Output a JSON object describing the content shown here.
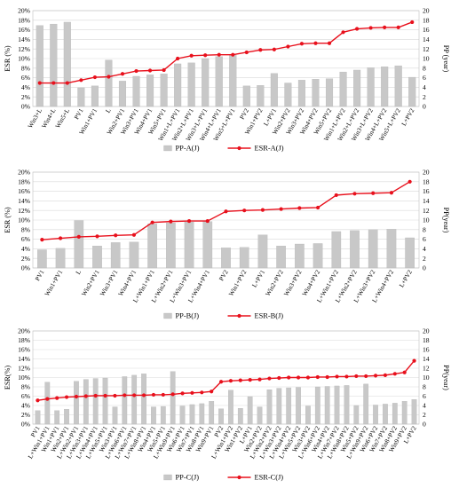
{
  "chart_data": [
    {
      "type": "bar+line",
      "ylabel_left": "ESR (%)",
      "ylabel_right": "PP (year)",
      "ylim_left": [
        0,
        20
      ],
      "ylim_right": [
        0,
        20
      ],
      "yticks_left": [
        "0%",
        "2%",
        "4%",
        "6%",
        "8%",
        "10%",
        "12%",
        "14%",
        "16%",
        "18%",
        "20%"
      ],
      "yticks_right": [
        "0",
        "2",
        "4",
        "6",
        "8",
        "10",
        "12",
        "14",
        "16",
        "18",
        "20"
      ],
      "grid": true,
      "legend_position": "bottom",
      "categories": [
        "Win3+L",
        "Win4+L",
        "Win5+L",
        "PV1",
        "Win1+PV1",
        "L",
        "Win2+PV1",
        "Win3+PV1",
        "Win4+PV1",
        "Win5+PV1",
        "Win1+L+PV1",
        "Win2+L+PV1",
        "Win3+L+PV1",
        "Win4+L+PV1",
        "Win5+L+PV1",
        "PV2",
        "Win1+PV2",
        "L+PV1",
        "Win2+PV2",
        "Win3+PV2",
        "Win4+PV2",
        "Win5+PV2",
        "Win1+L+PV2",
        "Win2+L+PV2",
        "Win3+L+PV2",
        "Win4+L+PV2",
        "Win5+L+PV2",
        "L+PV2"
      ],
      "series": [
        {
          "name": "PP-A(J)",
          "kind": "bar",
          "axis": "right",
          "color": "#c8c8c8",
          "values": [
            16.9,
            17.2,
            17.6,
            3.9,
            4.3,
            9.7,
            5.3,
            6.3,
            6.6,
            6.8,
            8.9,
            9.1,
            10.0,
            10.4,
            10.7,
            4.3,
            4.4,
            6.9,
            4.9,
            5.5,
            5.7,
            5.8,
            7.2,
            7.6,
            8.1,
            8.3,
            8.5,
            6.1
          ]
        },
        {
          "name": "ESR-A(J)",
          "kind": "line",
          "axis": "left",
          "color": "#e8101c",
          "values": [
            4.9,
            4.9,
            4.9,
            5.5,
            6.1,
            6.2,
            6.8,
            7.4,
            7.5,
            7.6,
            10.0,
            10.6,
            10.7,
            10.8,
            10.8,
            11.3,
            11.8,
            11.9,
            12.5,
            13.1,
            13.2,
            13.2,
            15.5,
            16.2,
            16.4,
            16.5,
            16.5,
            17.6
          ]
        }
      ]
    },
    {
      "type": "bar+line",
      "ylabel_left": "ESR (%)",
      "ylabel_right": "PP(year)",
      "ylim_left": [
        0,
        20
      ],
      "ylim_right": [
        0,
        20
      ],
      "yticks_left": [
        "0%",
        "2%",
        "4%",
        "6%",
        "8%",
        "10%",
        "12%",
        "14%",
        "16%",
        "18%",
        "20%"
      ],
      "yticks_right": [
        "0",
        "2",
        "4",
        "6",
        "8",
        "10",
        "12",
        "14",
        "16",
        "18",
        "20"
      ],
      "grid": true,
      "legend_position": "bottom",
      "categories": [
        "PV1",
        "Win1+PV1",
        "L",
        "Win2+PV1",
        "Win3+PV1",
        "Win4+PV1",
        "L+Win1+PV1",
        "L+Win2+PV1",
        "L+Win3+PV1",
        "L+Win4+PV1",
        "PV2",
        "Win1+PV2",
        "L+PV1",
        "Win2+PV2",
        "Win3+PV2",
        "Win4+PV2",
        "L+Win1+PV2",
        "L+Win2+PV2",
        "L+Win3+PV2",
        "L+Win4+PV2",
        "L+PV2"
      ],
      "series": [
        {
          "name": "PP-B(J)",
          "kind": "bar",
          "axis": "right",
          "color": "#c8c8c8",
          "values": [
            3.8,
            4.1,
            9.9,
            4.6,
            5.3,
            5.4,
            9.2,
            9.4,
            9.6,
            9.7,
            4.2,
            4.3,
            6.9,
            4.6,
            5.0,
            5.1,
            7.6,
            7.8,
            8.0,
            8.1,
            6.3
          ]
        },
        {
          "name": "ESR-B(J)",
          "kind": "line",
          "axis": "left",
          "color": "#e8101c",
          "values": [
            5.9,
            6.2,
            6.5,
            6.6,
            6.8,
            6.9,
            9.5,
            9.7,
            9.8,
            9.8,
            11.8,
            12.0,
            12.1,
            12.3,
            12.5,
            12.6,
            15.2,
            15.5,
            15.6,
            15.7,
            18.0
          ]
        }
      ]
    },
    {
      "type": "bar+line",
      "ylabel_left": "ESR(%)",
      "ylabel_right": "PP(year)",
      "ylim_left": [
        0,
        20
      ],
      "ylim_right": [
        0,
        20
      ],
      "yticks_left": [
        "0%",
        "2%",
        "4%",
        "6%",
        "8%",
        "10%",
        "12%",
        "14%",
        "16%",
        "18%",
        "20%"
      ],
      "yticks_right": [
        "0",
        "2",
        "4",
        "6",
        "8",
        "10",
        "12",
        "14",
        "16",
        "18",
        "20"
      ],
      "grid": true,
      "legend_position": "bottom",
      "categories": [
        "PV1",
        "L+Win1+PV1",
        "Win1+PV1",
        "Win2+PV1",
        "L+Win2+PV1",
        "L+Win3+PV1",
        "L+Win4+PV1",
        "L+Win5+PV1",
        "Win3+PV1",
        "L+Win6+PV1",
        "L+Win7+PV1",
        "L+Win8+PV1",
        "Win4+PV1",
        "Win5+PV1",
        "L+Win9+PV1",
        "Win6+PV1",
        "Win7+PV1",
        "Win8+PV1",
        "Win9+PV1",
        "PV2",
        "L+Win1+PV2",
        "Win1+PV2",
        "L+PV1",
        "Win2+PV2",
        "L+Win2+PV2",
        "L+Win3+PV2",
        "L+Win4+PV2",
        "L+Win5+PV2",
        "Win3+PV2",
        "L+Win6+PV2",
        "Win4+PV2",
        "L+Win7+PV2",
        "L+Win8+PV2",
        "Win5+PV2",
        "L+Win9+PV2",
        "Win6+PV2",
        "Win7+PV2",
        "Win8+PV2",
        "Win9+PV2",
        "L+PV2"
      ],
      "series": [
        {
          "name": "PP-C(J)",
          "kind": "bar",
          "axis": "right",
          "color": "#c8c8c8",
          "values": [
            2.9,
            9.0,
            2.9,
            3.2,
            9.2,
            9.6,
            9.8,
            9.9,
            3.7,
            10.2,
            10.5,
            10.8,
            3.7,
            3.8,
            11.3,
            3.9,
            4.2,
            4.4,
            4.9,
            3.3,
            7.3,
            3.4,
            5.9,
            3.7,
            7.4,
            7.7,
            7.8,
            7.9,
            3.9,
            8.0,
            8.1,
            8.2,
            8.3,
            4.0,
            8.6,
            4.1,
            4.3,
            4.5,
            4.9,
            5.3
          ]
        },
        {
          "name": "ESR-C(J)",
          "kind": "line",
          "axis": "left",
          "color": "#e8101c",
          "values": [
            5.1,
            5.4,
            5.6,
            5.8,
            5.9,
            6.0,
            6.1,
            6.1,
            6.1,
            6.2,
            6.2,
            6.2,
            6.3,
            6.3,
            6.4,
            6.6,
            6.7,
            6.8,
            7.0,
            9.1,
            9.3,
            9.4,
            9.5,
            9.6,
            9.8,
            9.9,
            10.0,
            10.0,
            10.0,
            10.1,
            10.1,
            10.2,
            10.2,
            10.3,
            10.3,
            10.4,
            10.5,
            10.8,
            11.1,
            13.6
          ]
        }
      ]
    }
  ]
}
